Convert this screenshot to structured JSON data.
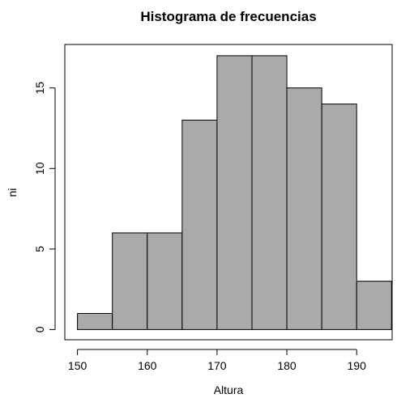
{
  "chart_data": {
    "type": "bar",
    "title": "Histograma de frecuencias",
    "xlabel": "Altura",
    "ylabel": "ni",
    "bins": [
      {
        "start": 150,
        "end": 155,
        "value": 1
      },
      {
        "start": 155,
        "end": 160,
        "value": 6
      },
      {
        "start": 160,
        "end": 165,
        "value": 6
      },
      {
        "start": 165,
        "end": 170,
        "value": 13
      },
      {
        "start": 170,
        "end": 175,
        "value": 17
      },
      {
        "start": 175,
        "end": 180,
        "value": 17
      },
      {
        "start": 180,
        "end": 185,
        "value": 15
      },
      {
        "start": 185,
        "end": 190,
        "value": 14
      },
      {
        "start": 190,
        "end": 195,
        "value": 3
      }
    ],
    "xticks": [
      150,
      160,
      170,
      180,
      190
    ],
    "yticks": [
      0,
      5,
      10,
      15
    ],
    "xlim": [
      150,
      195
    ],
    "ylim": [
      0,
      17
    ],
    "bar_color": "#aaaaaa",
    "grid": false,
    "legend": "none"
  }
}
